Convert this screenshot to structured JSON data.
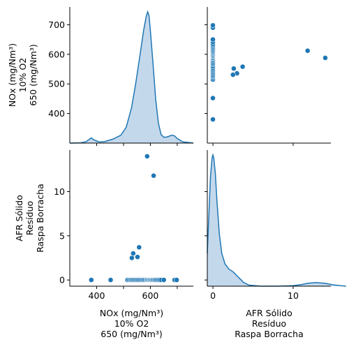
{
  "chart_data": {
    "type": "scatter",
    "description": "pairplot",
    "variables": [
      {
        "key": "nox",
        "label_lines": [
          "NOx (mg/Nm³)",
          "10% O2",
          "650 (mg/Nm³)"
        ]
      },
      {
        "key": "afr",
        "label_lines": [
          "AFR Sólido",
          "Resíduo",
          "Raspa Borracha"
        ]
      }
    ],
    "ranges": {
      "nox": [
        300,
        760
      ],
      "afr": [
        -0.7,
        14.7
      ]
    },
    "ticks": {
      "nox_x": [
        400,
        500,
        600,
        700
      ],
      "nox_x_labels": [
        "400",
        "",
        "600",
        ""
      ],
      "nox_y": [
        400,
        500,
        600,
        700
      ],
      "nox_y_labels": [
        "400",
        "500",
        "600",
        "700"
      ],
      "afr_x": [
        0,
        10
      ],
      "afr_x_labels": [
        "0",
        "10"
      ],
      "afr_y": [
        0,
        5,
        10
      ],
      "afr_y_labels": [
        "0",
        "5",
        "10"
      ]
    },
    "color": "#1f77b4",
    "kde_fill": "#c4d8ec",
    "points": [
      {
        "nox": 380,
        "afr": 0
      },
      {
        "nox": 452,
        "afr": 0
      },
      {
        "nox": 515,
        "afr": 0
      },
      {
        "nox": 521,
        "afr": 0
      },
      {
        "nox": 526,
        "afr": 0
      },
      {
        "nox": 530,
        "afr": 0
      },
      {
        "nox": 535,
        "afr": 0
      },
      {
        "nox": 540,
        "afr": 0
      },
      {
        "nox": 545,
        "afr": 0
      },
      {
        "nox": 550,
        "afr": 0
      },
      {
        "nox": 555,
        "afr": 0
      },
      {
        "nox": 560,
        "afr": 0
      },
      {
        "nox": 566,
        "afr": 0
      },
      {
        "nox": 570,
        "afr": 0
      },
      {
        "nox": 575,
        "afr": 0
      },
      {
        "nox": 580,
        "afr": 0
      },
      {
        "nox": 585,
        "afr": 0
      },
      {
        "nox": 588,
        "afr": 0
      },
      {
        "nox": 592,
        "afr": 0
      },
      {
        "nox": 595,
        "afr": 0
      },
      {
        "nox": 598,
        "afr": 0
      },
      {
        "nox": 602,
        "afr": 0
      },
      {
        "nox": 605,
        "afr": 0
      },
      {
        "nox": 608,
        "afr": 0
      },
      {
        "nox": 612,
        "afr": 0
      },
      {
        "nox": 616,
        "afr": 0
      },
      {
        "nox": 620,
        "afr": 0
      },
      {
        "nox": 625,
        "afr": 0
      },
      {
        "nox": 630,
        "afr": 0
      },
      {
        "nox": 635,
        "afr": 0
      },
      {
        "nox": 641,
        "afr": 0
      },
      {
        "nox": 650,
        "afr": 0
      },
      {
        "nox": 690,
        "afr": 0
      },
      {
        "nox": 698,
        "afr": 0
      },
      {
        "nox": 536,
        "afr": 3.0
      },
      {
        "nox": 531,
        "afr": 2.5
      },
      {
        "nox": 552,
        "afr": 2.6
      },
      {
        "nox": 558,
        "afr": 3.7
      },
      {
        "nox": 588,
        "afr": 14.0
      },
      {
        "nox": 612,
        "afr": 11.8
      }
    ],
    "kde": {
      "nox": {
        "x": [
          300,
          340,
          360,
          370,
          380,
          390,
          410,
          430,
          460,
          490,
          510,
          530,
          545,
          560,
          575,
          585,
          590,
          595,
          600,
          610,
          620,
          630,
          640,
          650,
          660,
          680,
          690,
          700,
          720,
          760
        ],
        "density": [
          0.0,
          0.002,
          0.01,
          0.025,
          0.04,
          0.025,
          0.008,
          0.012,
          0.03,
          0.06,
          0.12,
          0.27,
          0.45,
          0.65,
          0.86,
          0.97,
          1.0,
          0.97,
          0.86,
          0.6,
          0.33,
          0.15,
          0.065,
          0.045,
          0.045,
          0.06,
          0.055,
          0.035,
          0.01,
          0.0
        ]
      },
      "afr": {
        "x": [
          -0.7,
          -0.5,
          -0.3,
          -0.1,
          0.0,
          0.1,
          0.3,
          0.5,
          0.8,
          1.1,
          1.5,
          2.0,
          2.5,
          3.0,
          3.4,
          3.8,
          4.5,
          6.0,
          8.0,
          10.0,
          11.0,
          11.8,
          12.8,
          14.0,
          15.0,
          16.0,
          16.6
        ],
        "density": [
          0.25,
          0.55,
          0.84,
          0.98,
          1.0,
          0.98,
          0.86,
          0.65,
          0.4,
          0.25,
          0.17,
          0.13,
          0.11,
          0.08,
          0.055,
          0.03,
          0.008,
          0.0,
          0.0,
          0.004,
          0.012,
          0.022,
          0.028,
          0.022,
          0.01,
          0.003,
          0.0
        ]
      }
    }
  }
}
